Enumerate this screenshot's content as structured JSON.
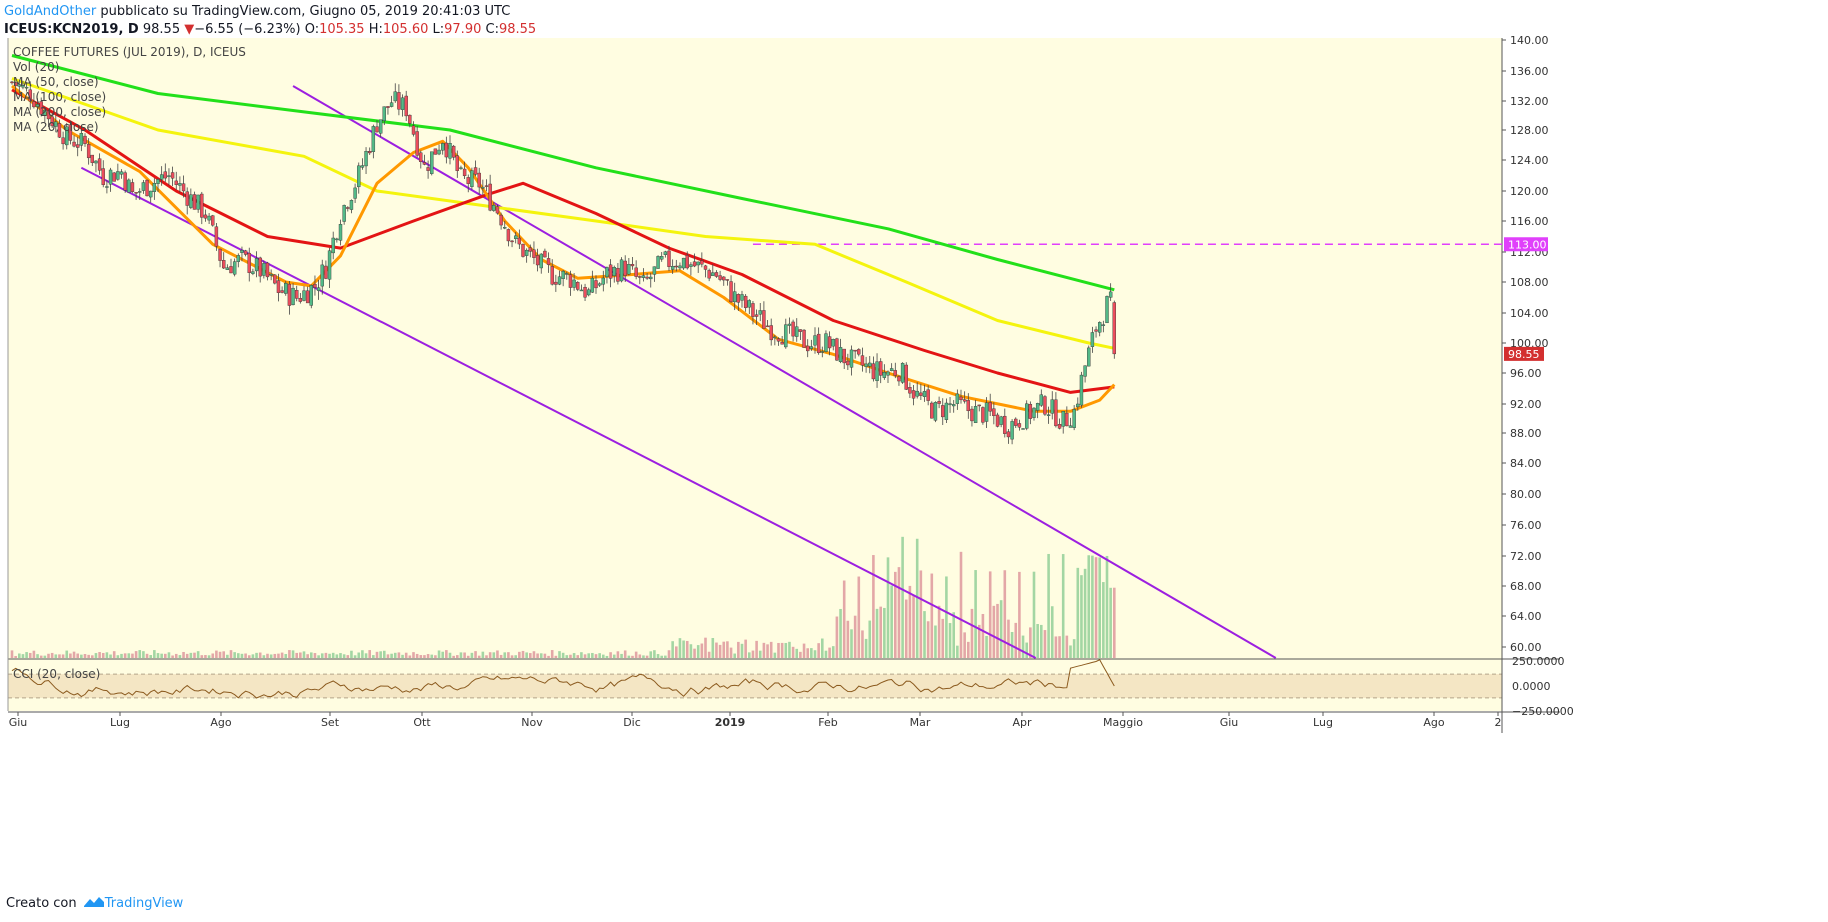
{
  "header": {
    "author": "GoldAndOther",
    "published_text": "pubblicato su TradingView.com, Giugno 05, 2019 20:41:03 UTC"
  },
  "ohlc": {
    "symbol": "ICEUS:KCN2019, D",
    "last": "98.55",
    "change_arrow": "▼",
    "change": "−6.55 (−6.23%)",
    "o_label": "O:",
    "o": "105.35",
    "h_label": "H:",
    "h": "105.60",
    "l_label": "L:",
    "l": "97.90",
    "c_label": "C:",
    "c": "98.55"
  },
  "legend": {
    "title": "COFFEE FUTURES (JUL 2019), D, ICEUS",
    "items": [
      "Vol (20)",
      "MA (50, close)",
      "MA (100, close)",
      "MA (200, close)",
      "MA (20, close)"
    ]
  },
  "footer": {
    "created": "Creato con",
    "brand": "TradingView"
  },
  "colors": {
    "background": "#fffde1",
    "up": "#53b987",
    "down": "#eb4d5c",
    "vol_up": "#a3d6a3",
    "vol_down": "#e3a7a7",
    "ma200": "#22e01a",
    "ma100": "#f4f40e",
    "ma50": "#e31414",
    "ma20": "#ff9800",
    "channel": "#9c1fe0",
    "hline": "#e040fb",
    "cci": "#8b5a1e"
  },
  "chart_data": {
    "type": "candlestick",
    "title": "COFFEE FUTURES (JUL 2019), D, ICEUS",
    "x_ticks": [
      "Giu",
      "Lug",
      "Ago",
      "Set",
      "Ott",
      "Nov",
      "Dic",
      "2019",
      "Feb",
      "Mar",
      "Apr",
      "Maggio",
      "Giu",
      "Lug",
      "Ago",
      "2"
    ],
    "y_ticks": [
      "140.00",
      "136.00",
      "132.00",
      "128.00",
      "124.00",
      "120.00",
      "116.00",
      "112.00",
      "108.00",
      "104.00",
      "100.00",
      "96.00",
      "92.00",
      "88.00",
      "84.00",
      "80.00",
      "76.00",
      "72.00",
      "68.00",
      "64.00",
      "60.00"
    ],
    "ylim": [
      58,
      141
    ],
    "price_anchors": [
      [
        0,
        134.5
      ],
      [
        5,
        133
      ],
      [
        10,
        130
      ],
      [
        15,
        127
      ],
      [
        20,
        126
      ],
      [
        25,
        122
      ],
      [
        30,
        122.5
      ],
      [
        33,
        119.5
      ],
      [
        38,
        121
      ],
      [
        43,
        122
      ],
      [
        48,
        119.5
      ],
      [
        53,
        117
      ],
      [
        58,
        110
      ],
      [
        63,
        111
      ],
      [
        68,
        109.5
      ],
      [
        73,
        107
      ],
      [
        78,
        106
      ],
      [
        83,
        107.5
      ],
      [
        86,
        110
      ],
      [
        90,
        117
      ],
      [
        95,
        122
      ],
      [
        100,
        129
      ],
      [
        104,
        132
      ],
      [
        108,
        131
      ],
      [
        113,
        123
      ],
      [
        118,
        127
      ],
      [
        123,
        121.5
      ],
      [
        128,
        121
      ],
      [
        133,
        117.5
      ],
      [
        138,
        113
      ],
      [
        143,
        111
      ],
      [
        148,
        109
      ],
      [
        153,
        108.5
      ],
      [
        158,
        106.5
      ],
      [
        163,
        109
      ],
      [
        168,
        110
      ],
      [
        173,
        107.5
      ],
      [
        178,
        110.5
      ],
      [
        183,
        111
      ],
      [
        188,
        110
      ],
      [
        193,
        109
      ],
      [
        198,
        106
      ],
      [
        203,
        104
      ],
      [
        208,
        102
      ],
      [
        213,
        101
      ],
      [
        218,
        100
      ],
      [
        223,
        100
      ],
      [
        228,
        98
      ],
      [
        233,
        97
      ],
      [
        238,
        96
      ],
      [
        243,
        96.5
      ],
      [
        248,
        93
      ],
      [
        253,
        91
      ],
      [
        258,
        92
      ],
      [
        263,
        91
      ],
      [
        268,
        90.5
      ],
      [
        273,
        89
      ],
      [
        278,
        90.5
      ],
      [
        283,
        92
      ],
      [
        288,
        89.5
      ],
      [
        291,
        91
      ],
      [
        294,
        97
      ],
      [
        297,
        102
      ],
      [
        300,
        105
      ],
      [
        302,
        105.35
      ]
    ],
    "last_candle": {
      "open": 105.35,
      "high": 105.6,
      "low": 97.9,
      "close": 98.55
    },
    "price_marker": "98.55",
    "horizontal_level": "113.00",
    "moving_averages": [
      {
        "name": "MA (200, close)",
        "color": "#22e01a",
        "points": [
          [
            0,
            138
          ],
          [
            40,
            133
          ],
          [
            80,
            130.5
          ],
          [
            120,
            128
          ],
          [
            160,
            123
          ],
          [
            200,
            119
          ],
          [
            240,
            115
          ],
          [
            270,
            111
          ],
          [
            302,
            107
          ]
        ]
      },
      {
        "name": "MA (100, close)",
        "color": "#f4f40e",
        "points": [
          [
            0,
            135
          ],
          [
            40,
            128
          ],
          [
            80,
            124.5
          ],
          [
            100,
            120
          ],
          [
            130,
            118
          ],
          [
            160,
            116
          ],
          [
            190,
            114
          ],
          [
            220,
            113
          ],
          [
            245,
            108
          ],
          [
            270,
            103
          ],
          [
            295,
            100
          ],
          [
            302,
            99.3
          ]
        ]
      },
      {
        "name": "MA (50, close)",
        "color": "#e31414",
        "points": [
          [
            0,
            133.5
          ],
          [
            20,
            128
          ],
          [
            45,
            120
          ],
          [
            70,
            114
          ],
          [
            90,
            112.5
          ],
          [
            110,
            116
          ],
          [
            130,
            119.5
          ],
          [
            140,
            121
          ],
          [
            160,
            117
          ],
          [
            180,
            112.5
          ],
          [
            200,
            109
          ],
          [
            225,
            103
          ],
          [
            250,
            99
          ],
          [
            270,
            96
          ],
          [
            290,
            93.5
          ],
          [
            302,
            94.2
          ]
        ]
      },
      {
        "name": "MA (20, close)",
        "color": "#ff9800",
        "points": [
          [
            0,
            134
          ],
          [
            15,
            128
          ],
          [
            35,
            122.5
          ],
          [
            55,
            113
          ],
          [
            75,
            108
          ],
          [
            82,
            107.5
          ],
          [
            90,
            111.5
          ],
          [
            100,
            121
          ],
          [
            110,
            125
          ],
          [
            118,
            126.5
          ],
          [
            125,
            123
          ],
          [
            135,
            116
          ],
          [
            145,
            111
          ],
          [
            155,
            108.5
          ],
          [
            170,
            109
          ],
          [
            183,
            109.5
          ],
          [
            195,
            106
          ],
          [
            210,
            100.5
          ],
          [
            225,
            98.5
          ],
          [
            240,
            96
          ],
          [
            260,
            93
          ],
          [
            280,
            91
          ],
          [
            290,
            91
          ],
          [
            298,
            92.5
          ],
          [
            302,
            94.5
          ]
        ]
      }
    ],
    "channel_lines": [
      {
        "from": [
          77,
          134
        ],
        "to": [
          300,
          71.5
        ]
      },
      {
        "from": [
          19,
          123
        ],
        "to": [
          287,
          57
        ]
      }
    ],
    "volume": {
      "label": "Vol (20)"
    },
    "cci": {
      "label": "CCI (20, close)",
      "y_ticks": [
        "250.0000",
        "0.0000",
        "−250.0000"
      ],
      "upper_band": 100,
      "lower_band": -100
    }
  }
}
